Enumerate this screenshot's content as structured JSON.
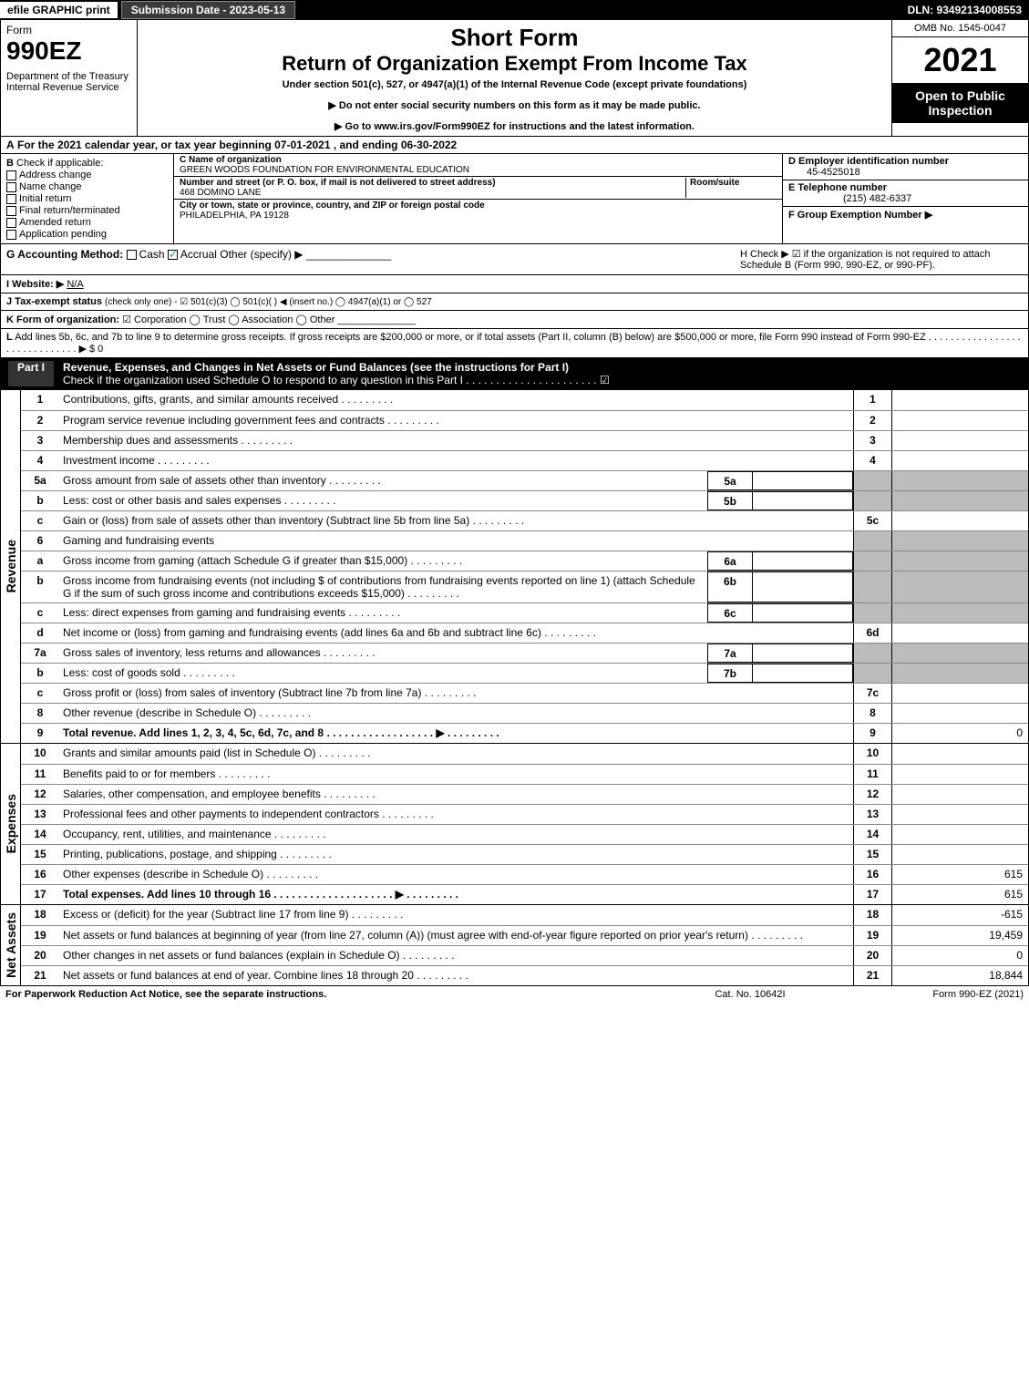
{
  "topbar": {
    "efile": "efile GRAPHIC print",
    "submission": "Submission Date - 2023-05-13",
    "dln": "DLN: 93492134008553"
  },
  "header": {
    "form_label": "Form",
    "form_no": "990EZ",
    "dept": "Department of the Treasury\nInternal Revenue Service",
    "short": "Short Form",
    "title": "Return of Organization Exempt From Income Tax",
    "under": "Under section 501(c), 527, or 4947(a)(1) of the Internal Revenue Code (except private foundations)",
    "note1": "▶ Do not enter social security numbers on this form as it may be made public.",
    "note2": "▶ Go to www.irs.gov/Form990EZ for instructions and the latest information.",
    "omb": "OMB No. 1545-0047",
    "year": "2021",
    "open": "Open to Public Inspection"
  },
  "rowA": {
    "lbl": "A",
    "text": "For the 2021 calendar year, or tax year beginning 07-01-2021 , and ending 06-30-2022"
  },
  "colB": {
    "lbl": "B",
    "title": "Check if applicable:",
    "items": [
      "Address change",
      "Name change",
      "Initial return",
      "Final return/terminated",
      "Amended return",
      "Application pending"
    ]
  },
  "colC": {
    "name_lbl": "C Name of organization",
    "name": "GREEN WOODS FOUNDATION FOR ENVIRONMENTAL EDUCATION",
    "street_lbl": "Number and street (or P. O. box, if mail is not delivered to street address)",
    "room_lbl": "Room/suite",
    "street": "468 DOMINO LANE",
    "city_lbl": "City or town, state or province, country, and ZIP or foreign postal code",
    "city": "PHILADELPHIA, PA  19128"
  },
  "colD": {
    "ein_lbl": "D Employer identification number",
    "ein": "45-4525018",
    "tel_lbl": "E Telephone number",
    "tel": "(215) 482-6337",
    "grp_lbl": "F Group Exemption Number ▶"
  },
  "rowG": {
    "g": "G Accounting Method:",
    "cash": "Cash",
    "accrual": "Accrual",
    "other": "Other (specify) ▶",
    "h": "H Check ▶ ☑ if the organization is not required to attach Schedule B (Form 990, 990-EZ, or 990-PF)."
  },
  "rowI": {
    "lbl": "I Website: ▶",
    "val": "N/A"
  },
  "rowJ": {
    "lbl": "J Tax-exempt status",
    "txt": "(check only one) - ☑ 501(c)(3)  ◯ 501(c)(  ) ◀ (insert no.)  ◯ 4947(a)(1) or  ◯ 527"
  },
  "rowK": {
    "lbl": "K Form of organization:",
    "txt": "☑ Corporation  ◯ Trust  ◯ Association  ◯ Other"
  },
  "rowL": {
    "lbl": "L",
    "txt": "Add lines 5b, 6c, and 7b to line 9 to determine gross receipts. If gross receipts are $200,000 or more, or if total assets (Part II, column (B) below) are $500,000 or more, file Form 990 instead of Form 990-EZ . . . . . . . . . . . . . . . . . . . . . . . . . . . . . . ▶ $ 0"
  },
  "part1": {
    "label": "Part I",
    "title": "Revenue, Expenses, and Changes in Net Assets or Fund Balances (see the instructions for Part I)",
    "check": "Check if the organization used Schedule O to respond to any question in this Part I . . . . . . . . . . . . . . . . . . . . . . ☑"
  },
  "sections": {
    "revenue": "Revenue",
    "expenses": "Expenses",
    "netassets": "Net Assets"
  },
  "lines": [
    {
      "n": "1",
      "t": "Contributions, gifts, grants, and similar amounts received",
      "rn": "1",
      "rv": ""
    },
    {
      "n": "2",
      "t": "Program service revenue including government fees and contracts",
      "rn": "2",
      "rv": ""
    },
    {
      "n": "3",
      "t": "Membership dues and assessments",
      "rn": "3",
      "rv": ""
    },
    {
      "n": "4",
      "t": "Investment income",
      "rn": "4",
      "rv": ""
    },
    {
      "n": "5a",
      "t": "Gross amount from sale of assets other than inventory",
      "sb": "5a",
      "shade": true
    },
    {
      "n": "b",
      "t": "Less: cost or other basis and sales expenses",
      "sb": "5b",
      "shade": true
    },
    {
      "n": "c",
      "t": "Gain or (loss) from sale of assets other than inventory (Subtract line 5b from line 5a)",
      "rn": "5c",
      "rv": ""
    },
    {
      "n": "6",
      "t": "Gaming and fundraising events",
      "grey": true
    },
    {
      "n": "a",
      "t": "Gross income from gaming (attach Schedule G if greater than $15,000)",
      "sb": "6a",
      "shade": true
    },
    {
      "n": "b",
      "t": "Gross income from fundraising events (not including $                  of contributions from fundraising events reported on line 1) (attach Schedule G if the sum of such gross income and contributions exceeds $15,000)",
      "sb": "6b",
      "shade": true
    },
    {
      "n": "c",
      "t": "Less: direct expenses from gaming and fundraising events",
      "sb": "6c",
      "shade": true
    },
    {
      "n": "d",
      "t": "Net income or (loss) from gaming and fundraising events (add lines 6a and 6b and subtract line 6c)",
      "rn": "6d",
      "rv": ""
    },
    {
      "n": "7a",
      "t": "Gross sales of inventory, less returns and allowances",
      "sb": "7a",
      "shade": true
    },
    {
      "n": "b",
      "t": "Less: cost of goods sold",
      "sb": "7b",
      "shade": true
    },
    {
      "n": "c",
      "t": "Gross profit or (loss) from sales of inventory (Subtract line 7b from line 7a)",
      "rn": "7c",
      "rv": ""
    },
    {
      "n": "8",
      "t": "Other revenue (describe in Schedule O)",
      "rn": "8",
      "rv": ""
    },
    {
      "n": "9",
      "t": "Total revenue. Add lines 1, 2, 3, 4, 5c, 6d, 7c, and 8  . . . . . . . . . . . . . . . . . . ▶",
      "rn": "9",
      "rv": "0",
      "bold": true
    }
  ],
  "exp_lines": [
    {
      "n": "10",
      "t": "Grants and similar amounts paid (list in Schedule O)",
      "rn": "10",
      "rv": ""
    },
    {
      "n": "11",
      "t": "Benefits paid to or for members",
      "rn": "11",
      "rv": ""
    },
    {
      "n": "12",
      "t": "Salaries, other compensation, and employee benefits",
      "rn": "12",
      "rv": ""
    },
    {
      "n": "13",
      "t": "Professional fees and other payments to independent contractors",
      "rn": "13",
      "rv": ""
    },
    {
      "n": "14",
      "t": "Occupancy, rent, utilities, and maintenance",
      "rn": "14",
      "rv": ""
    },
    {
      "n": "15",
      "t": "Printing, publications, postage, and shipping",
      "rn": "15",
      "rv": ""
    },
    {
      "n": "16",
      "t": "Other expenses (describe in Schedule O)",
      "rn": "16",
      "rv": "615"
    },
    {
      "n": "17",
      "t": "Total expenses. Add lines 10 through 16  . . . . . . . . . . . . . . . . . . . . ▶",
      "rn": "17",
      "rv": "615",
      "bold": true
    }
  ],
  "net_lines": [
    {
      "n": "18",
      "t": "Excess or (deficit) for the year (Subtract line 17 from line 9)",
      "rn": "18",
      "rv": "-615"
    },
    {
      "n": "19",
      "t": "Net assets or fund balances at beginning of year (from line 27, column (A)) (must agree with end-of-year figure reported on prior year's return)",
      "rn": "19",
      "rv": "19,459"
    },
    {
      "n": "20",
      "t": "Other changes in net assets or fund balances (explain in Schedule O)",
      "rn": "20",
      "rv": "0"
    },
    {
      "n": "21",
      "t": "Net assets or fund balances at end of year. Combine lines 18 through 20",
      "rn": "21",
      "rv": "18,844"
    }
  ],
  "footer": {
    "l": "For Paperwork Reduction Act Notice, see the separate instructions.",
    "m": "Cat. No. 10642I",
    "r": "Form 990-EZ (2021)"
  }
}
